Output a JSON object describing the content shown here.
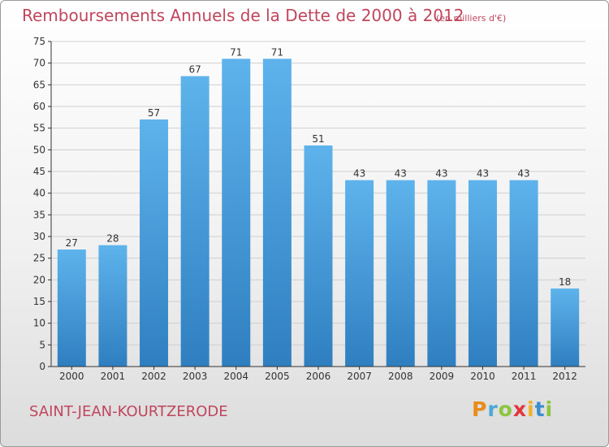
{
  "title": "Remboursements Annuels de la Dette de 2000 à 2012",
  "subtitle": "(en milliers d'€)",
  "commune": "SAINT-JEAN-KOURTZERODE",
  "logo": {
    "text": "Proxiti",
    "letters": [
      "P",
      "r",
      "o",
      "x",
      "i",
      "t",
      "i"
    ],
    "colors": [
      "#e88d1a",
      "#4aa9d8",
      "#8cc63f",
      "#e2363b",
      "#f0b323",
      "#3a8fd0",
      "#8cc63f"
    ]
  },
  "colors": {
    "title": "#c0465c",
    "bar_light": "#5eb3ec",
    "bar_dark": "#2f7fc0",
    "axis": "#333333",
    "grid": "#cfcfcf"
  },
  "chart_data": {
    "type": "bar",
    "categories": [
      "2000",
      "2001",
      "2002",
      "2003",
      "2004",
      "2005",
      "2006",
      "2007",
      "2008",
      "2009",
      "2010",
      "2011",
      "2012"
    ],
    "values": [
      27,
      28,
      57,
      67,
      71,
      71,
      51,
      43,
      43,
      43,
      43,
      43,
      18
    ],
    "title": "Remboursements Annuels de la Dette de 2000 à 2012",
    "subtitle": "(en milliers d'€)",
    "ylim": [
      0,
      75
    ],
    "yticks": [
      0,
      5,
      10,
      15,
      20,
      25,
      30,
      35,
      40,
      45,
      50,
      55,
      60,
      65,
      70,
      75
    ],
    "grid": true
  }
}
